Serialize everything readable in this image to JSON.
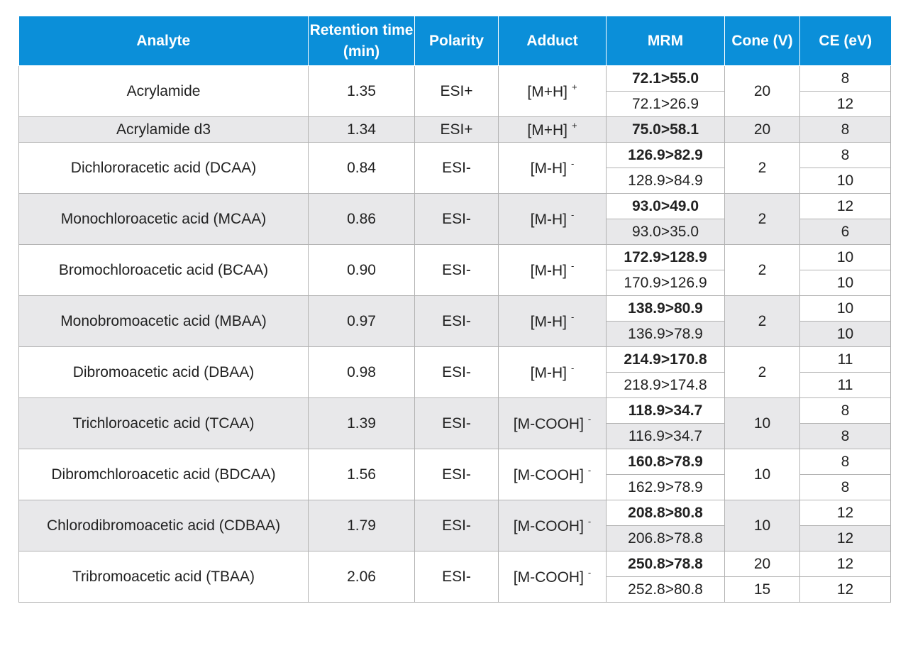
{
  "table": {
    "headers": {
      "analyte": "Analyte",
      "retention": "Retention time (min)",
      "polarity": "Polarity",
      "adduct": "Adduct",
      "mrm": "MRM",
      "cone": "Cone (V)",
      "ce": "CE (eV)"
    },
    "rows": [
      {
        "analyte": "Acrylamide",
        "retention": "1.35",
        "polarity": "ESI+",
        "adduct": "[M+H]",
        "charge": "+",
        "shaded": false,
        "transitions": [
          {
            "mrm": "72.1>55.0",
            "cone": "20",
            "ce": "8"
          },
          {
            "mrm": "72.1>26.9",
            "ce": "12"
          }
        ]
      },
      {
        "analyte": "Acrylamide d3",
        "retention": "1.34",
        "polarity": "ESI+",
        "adduct": "[M+H]",
        "charge": "+",
        "shaded": true,
        "transitions": [
          {
            "mrm": "75.0>58.1",
            "cone": "20",
            "ce": "8"
          }
        ]
      },
      {
        "analyte": "Dichlororacetic acid (DCAA)",
        "retention": "0.84",
        "polarity": "ESI-",
        "adduct": "[M-H]",
        "charge": "-",
        "shaded": false,
        "transitions": [
          {
            "mrm": "126.9>82.9",
            "cone": "2",
            "ce": "8"
          },
          {
            "mrm": "128.9>84.9",
            "ce": "10"
          }
        ]
      },
      {
        "analyte": "Monochloroacetic acid (MCAA)",
        "retention": "0.86",
        "polarity": "ESI-",
        "adduct": "[M-H]",
        "charge": "-",
        "shaded": true,
        "transitions": [
          {
            "mrm": "93.0>49.0",
            "cone": "2",
            "ce": "12"
          },
          {
            "mrm": "93.0>35.0",
            "ce": "6"
          }
        ]
      },
      {
        "analyte": "Bromochloroacetic acid (BCAA)",
        "retention": "0.90",
        "polarity": "ESI-",
        "adduct": "[M-H]",
        "charge": "-",
        "shaded": false,
        "transitions": [
          {
            "mrm": "172.9>128.9",
            "cone": "2",
            "ce": "10"
          },
          {
            "mrm": "170.9>126.9",
            "ce": "10"
          }
        ]
      },
      {
        "analyte": "Monobromoacetic acid (MBAA)",
        "retention": "0.97",
        "polarity": "ESI-",
        "adduct": "[M-H]",
        "charge": "-",
        "shaded": true,
        "transitions": [
          {
            "mrm": "138.9>80.9",
            "cone": "2",
            "ce": "10"
          },
          {
            "mrm": "136.9>78.9",
            "ce": "10"
          }
        ]
      },
      {
        "analyte": "Dibromoacetic acid (DBAA)",
        "retention": "0.98",
        "polarity": "ESI-",
        "adduct": "[M-H]",
        "charge": "-",
        "shaded": false,
        "transitions": [
          {
            "mrm": "214.9>170.8",
            "cone": "2",
            "ce": "11"
          },
          {
            "mrm": "218.9>174.8",
            "ce": "11"
          }
        ]
      },
      {
        "analyte": "Trichloroacetic acid (TCAA)",
        "retention": "1.39",
        "polarity": "ESI-",
        "adduct": "[M-COOH]",
        "charge": "-",
        "shaded": true,
        "transitions": [
          {
            "mrm": "118.9>34.7",
            "cone": "10",
            "ce": "8"
          },
          {
            "mrm": "116.9>34.7",
            "ce": "8"
          }
        ]
      },
      {
        "analyte": "Dibromchloroacetic acid (BDCAA)",
        "retention": "1.56",
        "polarity": "ESI-",
        "adduct": "[M-COOH]",
        "charge": "-",
        "shaded": false,
        "transitions": [
          {
            "mrm": "160.8>78.9",
            "cone": "10",
            "ce": "8"
          },
          {
            "mrm": "162.9>78.9",
            "ce": "8"
          }
        ]
      },
      {
        "analyte": "Chlorodibromoacetic acid (CDBAA)",
        "retention": "1.79",
        "polarity": "ESI-",
        "adduct": "[M-COOH]",
        "charge": "-",
        "shaded": true,
        "transitions": [
          {
            "mrm": "208.8>80.8",
            "cone": "10",
            "ce": "12"
          },
          {
            "mrm": "206.8>78.8",
            "ce": "12"
          }
        ]
      },
      {
        "analyte": "Tribromoacetic acid (TBAA)",
        "retention": "2.06",
        "polarity": "ESI-",
        "adduct": "[M-COOH]",
        "charge": "-",
        "shaded": false,
        "transitions": [
          {
            "mrm": "250.8>78.8",
            "cone": "20",
            "ce": "12"
          },
          {
            "mrm": "252.8>80.8",
            "cone": "15",
            "ce": "12"
          }
        ]
      }
    ]
  }
}
